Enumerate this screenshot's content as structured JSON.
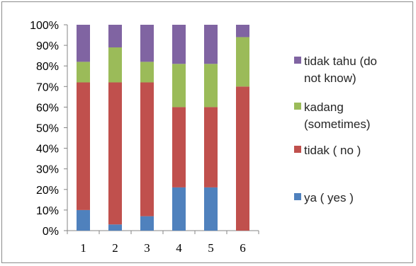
{
  "chart_data": {
    "type": "bar",
    "stacked": true,
    "percent_stacked": true,
    "categories": [
      "1",
      "2",
      "3",
      "4",
      "5",
      "6"
    ],
    "y_ticks": [
      "0%",
      "10%",
      "20%",
      "30%",
      "40%",
      "50%",
      "60%",
      "70%",
      "80%",
      "90%",
      "100%"
    ],
    "ylim": [
      0,
      100
    ],
    "grid": false,
    "legend_position": "right",
    "series": [
      {
        "name": "ya ( yes )",
        "color": "#4f81bd",
        "values": [
          10,
          3,
          7,
          21,
          21,
          0
        ]
      },
      {
        "name": "tidak ( no )",
        "color": "#c0504d",
        "values": [
          62,
          69,
          65,
          39,
          39,
          70
        ]
      },
      {
        "name": "kadang (sometimes)",
        "color": "#9bbb59",
        "values": [
          10,
          17,
          10,
          21,
          21,
          24
        ]
      },
      {
        "name": "tidak tahu  (do not know)",
        "color": "#8064a2",
        "values": [
          18,
          11,
          18,
          19,
          19,
          6
        ]
      }
    ],
    "legend": [
      {
        "lines": [
          "tidak tahu  (do",
          "not know)"
        ],
        "color": "#8064a2"
      },
      {
        "lines": [
          "kadang",
          "(sometimes)"
        ],
        "color": "#9bbb59"
      },
      {
        "lines": [
          "tidak ( no )"
        ],
        "color": "#c0504d"
      },
      {
        "lines": [
          "ya ( yes )"
        ],
        "color": "#4f81bd"
      }
    ]
  }
}
